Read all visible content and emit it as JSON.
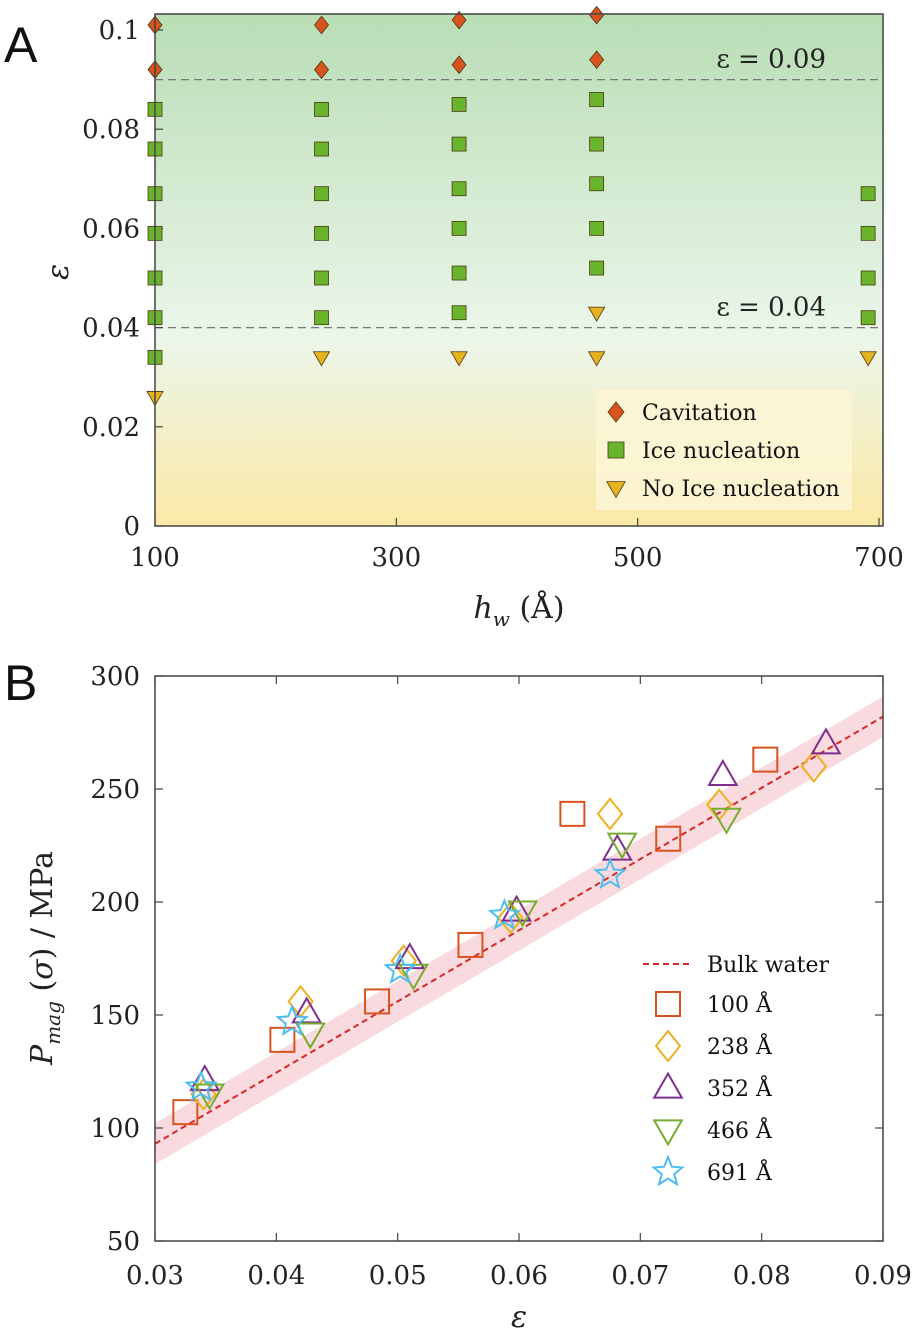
{
  "chart_data": [
    {
      "panel": "A",
      "type": "scatter",
      "xlabel": "h_w (Å)",
      "ylabel": "ε",
      "xlim": [
        100,
        700
      ],
      "ylim": [
        0,
        0.1
      ],
      "xticks": [
        "100",
        "300",
        "500",
        "700"
      ],
      "yticks": [
        "0",
        "0.02",
        "0.04",
        "0.06",
        "0.08",
        "0.1"
      ],
      "annotations": [
        "ε = 0.09",
        "ε = 0.04"
      ],
      "thresholds": [
        0.09,
        0.04
      ],
      "legend_position": "bottom-right",
      "background": {
        "top": "#b9ddb5",
        "middle": "#ebf6ea",
        "bottom": "#fbe9a6"
      },
      "series": [
        {
          "name": "Cavitation",
          "marker": "diamond",
          "color": "#d9531e",
          "points": [
            [
              100,
              0.101
            ],
            [
              100,
              0.092
            ],
            [
              238,
              0.101
            ],
            [
              238,
              0.092
            ],
            [
              352,
              0.102
            ],
            [
              352,
              0.093
            ],
            [
              466,
              0.103
            ],
            [
              466,
              0.094
            ]
          ]
        },
        {
          "name": "Ice nucleation",
          "marker": "square",
          "color": "#6ab42d",
          "points": [
            [
              100,
              0.084
            ],
            [
              100,
              0.076
            ],
            [
              100,
              0.067
            ],
            [
              100,
              0.059
            ],
            [
              100,
              0.05
            ],
            [
              100,
              0.042
            ],
            [
              100,
              0.034
            ],
            [
              238,
              0.084
            ],
            [
              238,
              0.076
            ],
            [
              238,
              0.067
            ],
            [
              238,
              0.059
            ],
            [
              238,
              0.05
            ],
            [
              238,
              0.042
            ],
            [
              352,
              0.085
            ],
            [
              352,
              0.077
            ],
            [
              352,
              0.068
            ],
            [
              352,
              0.06
            ],
            [
              352,
              0.051
            ],
            [
              352,
              0.043
            ],
            [
              466,
              0.086
            ],
            [
              466,
              0.077
            ],
            [
              466,
              0.069
            ],
            [
              466,
              0.06
            ],
            [
              466,
              0.052
            ],
            [
              691,
              0.067
            ],
            [
              691,
              0.059
            ],
            [
              691,
              0.05
            ],
            [
              691,
              0.042
            ]
          ]
        },
        {
          "name": "No Ice nucleation",
          "marker": "triangle-down",
          "color": "#e7b21f",
          "points": [
            [
              100,
              0.026
            ],
            [
              238,
              0.034
            ],
            [
              352,
              0.034
            ],
            [
              466,
              0.043
            ],
            [
              466,
              0.034
            ],
            [
              691,
              0.034
            ]
          ]
        }
      ]
    },
    {
      "panel": "B",
      "type": "scatter",
      "xlabel": "ε",
      "ylabel": "P_mag (σ) / MPa",
      "xlim": [
        0.03,
        0.09
      ],
      "ylim": [
        50,
        300
      ],
      "xticks": [
        "0.03",
        "0.04",
        "0.05",
        "0.06",
        "0.07",
        "0.08",
        "0.09"
      ],
      "yticks": [
        "50",
        "100",
        "150",
        "200",
        "250",
        "300"
      ],
      "legend_position": "right",
      "bulk_water": {
        "name": "Bulk water",
        "color": "#d62728",
        "x": [
          0.03,
          0.09
        ],
        "y": [
          93,
          282
        ],
        "band": 9
      },
      "series": [
        {
          "name": "100 Å",
          "marker": "square",
          "color": "#d9531e",
          "points": [
            [
              0.0325,
              107
            ],
            [
              0.0405,
              139
            ],
            [
              0.0483,
              156
            ],
            [
              0.056,
              181
            ],
            [
              0.0644,
              239
            ],
            [
              0.0723,
              228
            ],
            [
              0.0803,
              263
            ]
          ]
        },
        {
          "name": "238 Å",
          "marker": "diamond",
          "color": "#edb120",
          "points": [
            [
              0.034,
              115
            ],
            [
              0.042,
              156
            ],
            [
              0.0505,
              174
            ],
            [
              0.0593,
              193
            ],
            [
              0.0675,
              239
            ],
            [
              0.0765,
              243
            ],
            [
              0.0843,
              260
            ]
          ]
        },
        {
          "name": "352 Å",
          "marker": "triangle-up",
          "color": "#7e2f8e",
          "points": [
            [
              0.0341,
              121
            ],
            [
              0.0425,
              151
            ],
            [
              0.051,
              175
            ],
            [
              0.0598,
              196
            ],
            [
              0.0681,
              223
            ],
            [
              0.0768,
              256
            ],
            [
              0.0853,
              270
            ]
          ]
        },
        {
          "name": "466 Å",
          "marker": "triangle-down",
          "color": "#77ac30",
          "points": [
            [
              0.0345,
              115
            ],
            [
              0.0428,
              142
            ],
            [
              0.0513,
              168
            ],
            [
              0.0603,
              196
            ],
            [
              0.0685,
              226
            ],
            [
              0.0771,
              237
            ]
          ]
        },
        {
          "name": "691 Å",
          "marker": "star",
          "color": "#4dbeee",
          "points": [
            [
              0.0338,
              118
            ],
            [
              0.0413,
              147
            ],
            [
              0.0502,
              170
            ],
            [
              0.0588,
              194
            ],
            [
              0.0675,
              212
            ]
          ]
        }
      ]
    }
  ]
}
